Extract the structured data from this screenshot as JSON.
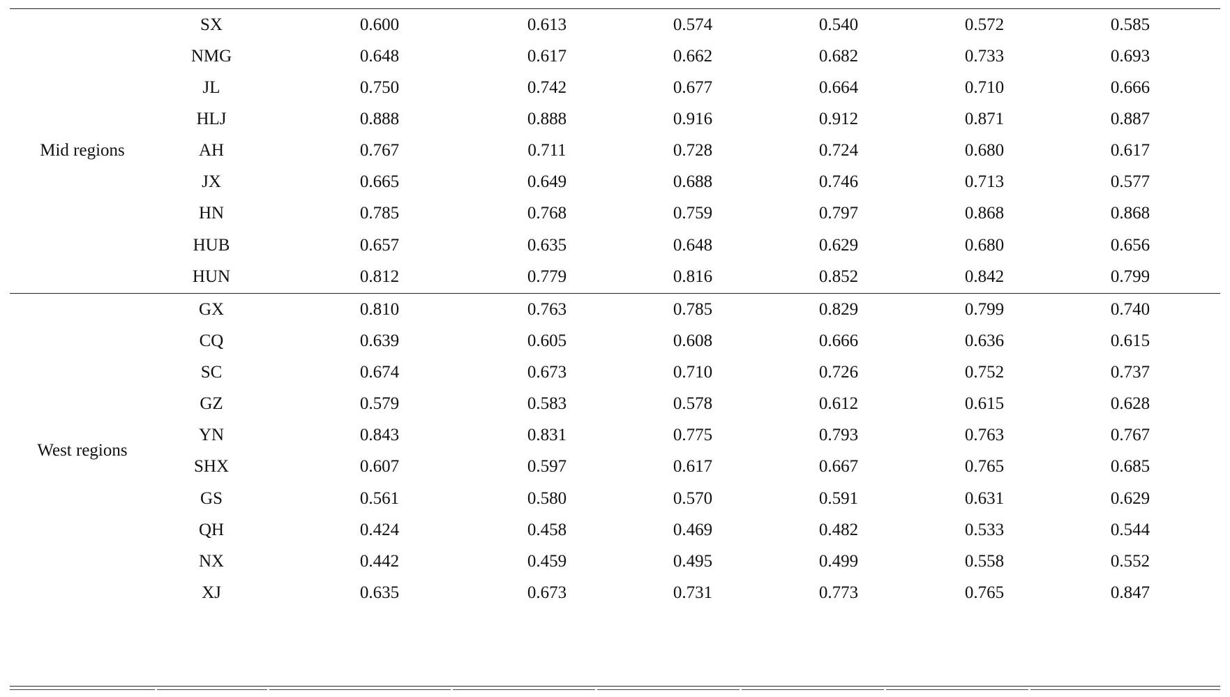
{
  "table": {
    "groups": [
      {
        "name": "Mid regions",
        "rows": [
          {
            "region": "SX",
            "values": [
              "0.600",
              "0.613",
              "0.574",
              "0.540",
              "0.572",
              "0.585"
            ]
          },
          {
            "region": "NMG",
            "values": [
              "0.648",
              "0.617",
              "0.662",
              "0.682",
              "0.733",
              "0.693"
            ]
          },
          {
            "region": "JL",
            "values": [
              "0.750",
              "0.742",
              "0.677",
              "0.664",
              "0.710",
              "0.666"
            ]
          },
          {
            "region": "HLJ",
            "values": [
              "0.888",
              "0.888",
              "0.916",
              "0.912",
              "0.871",
              "0.887"
            ]
          },
          {
            "region": "AH",
            "values": [
              "0.767",
              "0.711",
              "0.728",
              "0.724",
              "0.680",
              "0.617"
            ]
          },
          {
            "region": "JX",
            "values": [
              "0.665",
              "0.649",
              "0.688",
              "0.746",
              "0.713",
              "0.577"
            ]
          },
          {
            "region": "HN",
            "values": [
              "0.785",
              "0.768",
              "0.759",
              "0.797",
              "0.868",
              "0.868"
            ]
          },
          {
            "region": "HUB",
            "values": [
              "0.657",
              "0.635",
              "0.648",
              "0.629",
              "0.680",
              "0.656"
            ]
          },
          {
            "region": "HUN",
            "values": [
              "0.812",
              "0.779",
              "0.816",
              "0.852",
              "0.842",
              "0.799"
            ]
          }
        ]
      },
      {
        "name": "West regions",
        "rows": [
          {
            "region": "GX",
            "values": [
              "0.810",
              "0.763",
              "0.785",
              "0.829",
              "0.799",
              "0.740"
            ]
          },
          {
            "region": "CQ",
            "values": [
              "0.639",
              "0.605",
              "0.608",
              "0.666",
              "0.636",
              "0.615"
            ]
          },
          {
            "region": "SC",
            "values": [
              "0.674",
              "0.673",
              "0.710",
              "0.726",
              "0.752",
              "0.737"
            ]
          },
          {
            "region": "GZ",
            "values": [
              "0.579",
              "0.583",
              "0.578",
              "0.612",
              "0.615",
              "0.628"
            ]
          },
          {
            "region": "YN",
            "values": [
              "0.843",
              "0.831",
              "0.775",
              "0.793",
              "0.763",
              "0.767"
            ]
          },
          {
            "region": "SHX",
            "values": [
              "0.607",
              "0.597",
              "0.617",
              "0.667",
              "0.765",
              "0.685"
            ]
          },
          {
            "region": "GS",
            "values": [
              "0.561",
              "0.580",
              "0.570",
              "0.591",
              "0.631",
              "0.629"
            ]
          },
          {
            "region": "QH",
            "values": [
              "0.424",
              "0.458",
              "0.469",
              "0.482",
              "0.533",
              "0.544"
            ]
          },
          {
            "region": "NX",
            "values": [
              "0.442",
              "0.459",
              "0.495",
              "0.499",
              "0.558",
              "0.552"
            ]
          },
          {
            "region": "XJ",
            "values": [
              "0.635",
              "0.673",
              "0.731",
              "0.773",
              "0.765",
              "0.847"
            ]
          }
        ]
      }
    ]
  }
}
